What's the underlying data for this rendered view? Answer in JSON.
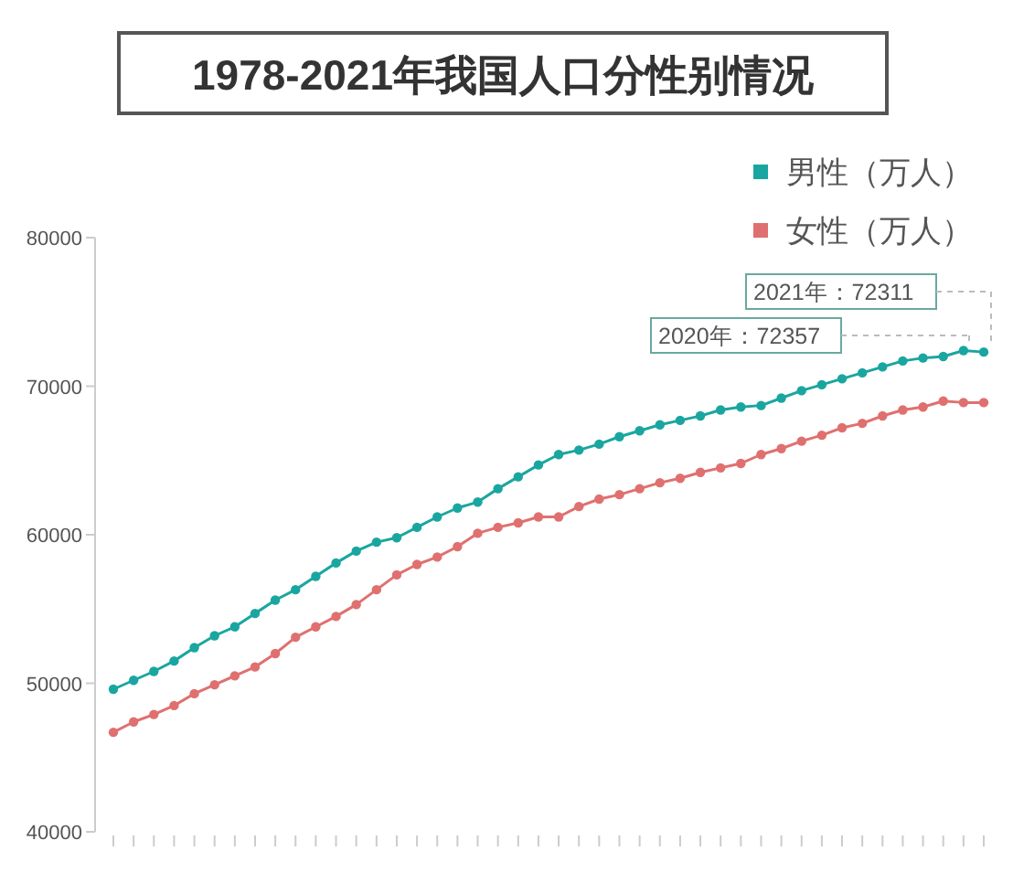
{
  "chart_data": {
    "type": "line",
    "title": "1978-2021年我国人口分性别情况",
    "categories": [
      null,
      null,
      null,
      null,
      null,
      null,
      null,
      null,
      null,
      null,
      null,
      null,
      null,
      null,
      null,
      null,
      null,
      null,
      null,
      null,
      null,
      null,
      null,
      null,
      null,
      null,
      null,
      null,
      null,
      null,
      null,
      null,
      null,
      null,
      null,
      null,
      null,
      null,
      null,
      null,
      null,
      null,
      null,
      null
    ],
    "series": [
      {
        "name": "男性（万人）",
        "color": "#1aa6a0",
        "values": [
          49600,
          50200,
          50800,
          51500,
          52400,
          53200,
          53800,
          54700,
          55600,
          56300,
          57200,
          58100,
          58900,
          59500,
          59800,
          60500,
          61200,
          61800,
          62200,
          63100,
          63900,
          64700,
          65400,
          65700,
          66100,
          66600,
          67000,
          67400,
          67700,
          68000,
          68400,
          68600,
          68700,
          69200,
          69700,
          70100,
          70500,
          70900,
          71300,
          71700,
          71900,
          72000,
          72400,
          72300
        ]
      },
      {
        "name": "女性（万人）",
        "color": "#e07070",
        "values": [
          46700,
          47400,
          47900,
          48500,
          49300,
          49900,
          50500,
          51100,
          52000,
          53100,
          53800,
          54500,
          55300,
          56300,
          57300,
          58000,
          58500,
          59200,
          60100,
          60500,
          60800,
          61200,
          61200,
          61900,
          62400,
          62700,
          63100,
          63500,
          63800,
          64200,
          64500,
          64800,
          65400,
          65800,
          66300,
          66700,
          67200,
          67500,
          68000,
          68400,
          68600,
          69000,
          68900,
          68900
        ]
      }
    ],
    "ylim": [
      40000,
      80000
    ],
    "yticks": [
      40000,
      50000,
      60000,
      70000,
      80000
    ],
    "grid": false,
    "legend": "top right",
    "marker": "circle",
    "line_style": "solid",
    "annotations": [
      "2021年：72311",
      "2020年：72357"
    ]
  }
}
